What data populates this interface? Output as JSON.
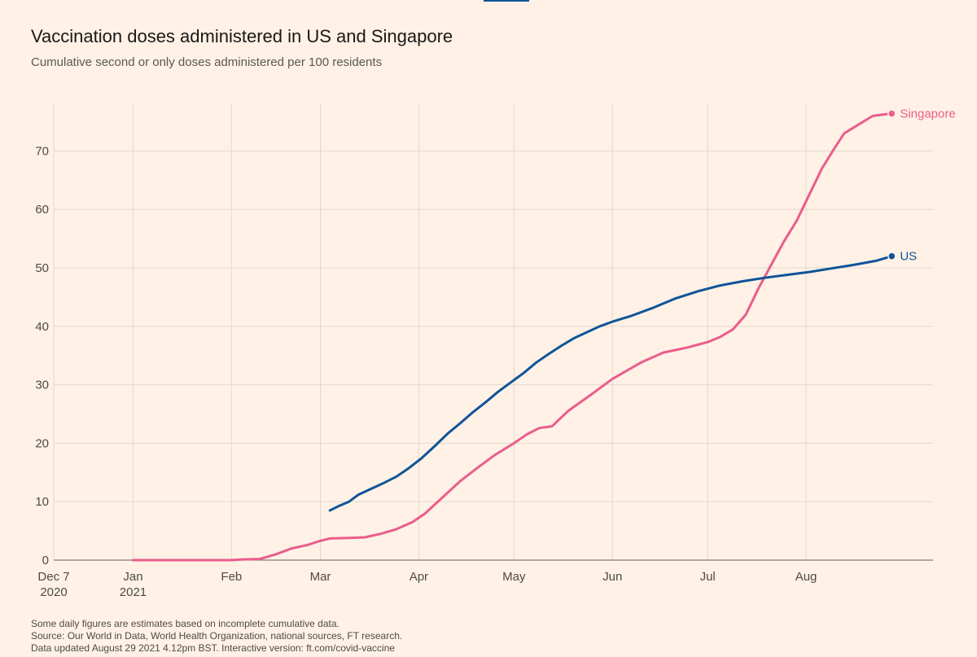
{
  "header": {
    "title": "Vaccination doses administered in US and Singapore",
    "subtitle": "Cumulative second or only doses administered per 100 residents"
  },
  "footnotes": [
    "Some daily figures are estimates based on incomplete cumulative data.",
    "Source: Our World in Data, World Health Organization, national sources, FT research.",
    "Data updated August 29 2021 4.12pm BST. Interactive version: ft.com/covid-vaccine"
  ],
  "chart_data": {
    "type": "line",
    "title": "Vaccination doses administered in US and Singapore",
    "subtitle": "Cumulative second or only doses administered per 100 residents",
    "xlabel": "",
    "ylabel": "",
    "xlim": [
      "2020-12-07",
      "2021-09-10"
    ],
    "ylim": [
      0,
      78
    ],
    "grid": true,
    "legend": "direct labels at line ends",
    "x_ticks": [
      {
        "date": "2020-12-07",
        "label": "Dec 7",
        "sublabel": "2020"
      },
      {
        "date": "2021-01-01",
        "label": "Jan",
        "sublabel": "2021"
      },
      {
        "date": "2021-02-01",
        "label": "Feb",
        "sublabel": ""
      },
      {
        "date": "2021-03-01",
        "label": "Mar",
        "sublabel": ""
      },
      {
        "date": "2021-04-01",
        "label": "Apr",
        "sublabel": ""
      },
      {
        "date": "2021-05-01",
        "label": "May",
        "sublabel": ""
      },
      {
        "date": "2021-06-01",
        "label": "Jun",
        "sublabel": ""
      },
      {
        "date": "2021-07-01",
        "label": "Jul",
        "sublabel": ""
      },
      {
        "date": "2021-08-01",
        "label": "Aug",
        "sublabel": ""
      }
    ],
    "y_ticks": [
      0,
      10,
      20,
      30,
      40,
      50,
      60,
      70
    ],
    "series": [
      {
        "name": "Singapore",
        "color": "#e95d8c",
        "points": [
          [
            "2021-01-01",
            0
          ],
          [
            "2021-01-15",
            0
          ],
          [
            "2021-02-01",
            0
          ],
          [
            "2021-02-04",
            0.1
          ],
          [
            "2021-02-10",
            0.2
          ],
          [
            "2021-02-15",
            1.0
          ],
          [
            "2021-02-20",
            2.0
          ],
          [
            "2021-02-25",
            2.6
          ],
          [
            "2021-03-01",
            3.3
          ],
          [
            "2021-03-04",
            3.7
          ],
          [
            "2021-03-10",
            3.8
          ],
          [
            "2021-03-15",
            3.9
          ],
          [
            "2021-03-20",
            4.5
          ],
          [
            "2021-03-25",
            5.3
          ],
          [
            "2021-03-30",
            6.5
          ],
          [
            "2021-04-03",
            8.0
          ],
          [
            "2021-04-08",
            10.5
          ],
          [
            "2021-04-14",
            13.5
          ],
          [
            "2021-04-20",
            16.0
          ],
          [
            "2021-04-25",
            18.0
          ],
          [
            "2021-05-01",
            20.0
          ],
          [
            "2021-05-05",
            21.5
          ],
          [
            "2021-05-09",
            22.6
          ],
          [
            "2021-05-13",
            22.9
          ],
          [
            "2021-05-18",
            25.5
          ],
          [
            "2021-05-25",
            28.2
          ],
          [
            "2021-06-01",
            31.0
          ],
          [
            "2021-06-10",
            33.8
          ],
          [
            "2021-06-17",
            35.5
          ],
          [
            "2021-06-24",
            36.3
          ],
          [
            "2021-07-01",
            37.3
          ],
          [
            "2021-07-05",
            38.2
          ],
          [
            "2021-07-09",
            39.5
          ],
          [
            "2021-07-13",
            42.0
          ],
          [
            "2021-07-17",
            46.5
          ],
          [
            "2021-07-21",
            50.5
          ],
          [
            "2021-07-25",
            54.5
          ],
          [
            "2021-07-29",
            58.0
          ],
          [
            "2021-08-02",
            62.5
          ],
          [
            "2021-08-06",
            67.0
          ],
          [
            "2021-08-10",
            70.5
          ],
          [
            "2021-08-13",
            73.0
          ],
          [
            "2021-08-16",
            74.0
          ],
          [
            "2021-08-19",
            75.0
          ],
          [
            "2021-08-22",
            76.0
          ],
          [
            "2021-08-25",
            76.2
          ],
          [
            "2021-08-28",
            76.4
          ]
        ]
      },
      {
        "name": "US",
        "color": "#0f5499",
        "points": [
          [
            "2021-03-04",
            8.5
          ],
          [
            "2021-03-07",
            9.3
          ],
          [
            "2021-03-10",
            10.0
          ],
          [
            "2021-03-13",
            11.2
          ],
          [
            "2021-03-17",
            12.2
          ],
          [
            "2021-03-21",
            13.2
          ],
          [
            "2021-03-25",
            14.3
          ],
          [
            "2021-03-29",
            15.8
          ],
          [
            "2021-04-02",
            17.5
          ],
          [
            "2021-04-06",
            19.5
          ],
          [
            "2021-04-10",
            21.6
          ],
          [
            "2021-04-14",
            23.4
          ],
          [
            "2021-04-18",
            25.3
          ],
          [
            "2021-04-22",
            27.0
          ],
          [
            "2021-04-26",
            28.8
          ],
          [
            "2021-04-30",
            30.4
          ],
          [
            "2021-05-04",
            32.0
          ],
          [
            "2021-05-08",
            33.8
          ],
          [
            "2021-05-12",
            35.3
          ],
          [
            "2021-05-16",
            36.7
          ],
          [
            "2021-05-20",
            38.0
          ],
          [
            "2021-05-24",
            39.0
          ],
          [
            "2021-05-28",
            40.0
          ],
          [
            "2021-06-01",
            40.8
          ],
          [
            "2021-06-07",
            41.8
          ],
          [
            "2021-06-14",
            43.2
          ],
          [
            "2021-06-21",
            44.8
          ],
          [
            "2021-06-28",
            46.0
          ],
          [
            "2021-07-05",
            47.0
          ],
          [
            "2021-07-12",
            47.7
          ],
          [
            "2021-07-19",
            48.3
          ],
          [
            "2021-07-26",
            48.8
          ],
          [
            "2021-08-02",
            49.3
          ],
          [
            "2021-08-09",
            49.9
          ],
          [
            "2021-08-16",
            50.5
          ],
          [
            "2021-08-23",
            51.2
          ],
          [
            "2021-08-28",
            52.0
          ]
        ]
      }
    ]
  }
}
